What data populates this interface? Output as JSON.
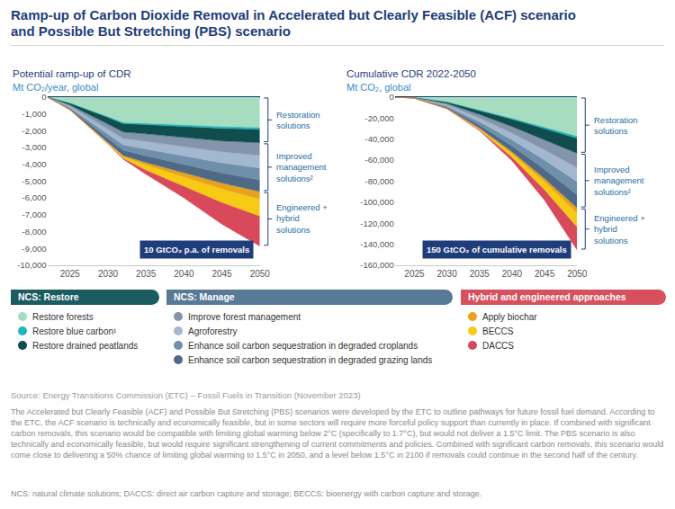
{
  "title": [
    "Ramp-up of Carbon Dioxide Removal in Accelerated but Clearly Feasible (ACF) scenario",
    "and Possible But Stretching (PBS) scenario"
  ],
  "legend_groups": [
    {
      "title": "NCS: Restore",
      "color": "#1a5c60",
      "bracket": "Restoration solutions"
    },
    {
      "title": "NCS: Manage",
      "color": "#587a96",
      "bracket": "Improved management solutions²"
    },
    {
      "title": "Hybrid and engineered approaches",
      "color": "#d6505d",
      "bracket": "Engineered + hybrid solutions"
    }
  ],
  "chart_data": [
    {
      "type": "area",
      "stacked": true,
      "grid": false,
      "title": "Potential ramp-up of CDR",
      "subtitle": "Mt CO₂/year, global",
      "x": [
        2022,
        2025,
        2030,
        2032,
        2035,
        2040,
        2045,
        2050
      ],
      "xlim": [
        2022,
        2050
      ],
      "xticks": [
        2025,
        2030,
        2035,
        2040,
        2045,
        2050
      ],
      "ylim": [
        -10000,
        0
      ],
      "yticks": [
        0,
        {
          "value": -1000,
          "label": "-1,000"
        },
        {
          "value": -2000,
          "label": "-2,000"
        },
        {
          "value": -3000,
          "label": "-3,000"
        },
        {
          "value": -4000,
          "label": "-4,000"
        },
        {
          "value": -5000,
          "label": "-5,000"
        },
        {
          "value": -6000,
          "label": "-6,000"
        },
        {
          "value": -7000,
          "label": "-7,000"
        },
        {
          "value": -8000,
          "label": "-8,000"
        },
        {
          "value": -9000,
          "label": "-9,000"
        },
        {
          "value": -10000,
          "label": "-10,000"
        }
      ],
      "annotations": [
        {
          "text": "10 GtCO₂ p.a. of removals"
        }
      ],
      "series": [
        {
          "name": "Restore forests",
          "group": "NCS: Restore",
          "color": "#a6dcc0",
          "values": [
            0,
            -350,
            -1150,
            -1500,
            -1550,
            -1650,
            -1750,
            -1800
          ]
        },
        {
          "name": "Restore blue carbon¹",
          "group": "NCS: Restore",
          "color": "#22b5b8",
          "values": [
            0,
            -20,
            -60,
            -80,
            -90,
            -100,
            -110,
            -120
          ]
        },
        {
          "name": "Restore drained peatlands",
          "group": "NCS: Restore",
          "color": "#0f4d4f",
          "values": [
            0,
            -100,
            -400,
            -500,
            -550,
            -650,
            -750,
            -800
          ]
        },
        {
          "name": "Improve forest management",
          "group": "NCS: Manage",
          "color": "#8394ab",
          "values": [
            0,
            -80,
            -300,
            -380,
            -450,
            -550,
            -650,
            -750
          ]
        },
        {
          "name": "Agroforestry",
          "group": "NCS: Manage",
          "color": "#a3b8cf",
          "values": [
            0,
            -80,
            -300,
            -380,
            -450,
            -550,
            -650,
            -750
          ]
        },
        {
          "name": "Enhance soil carbon sequestration in degraded croplands",
          "group": "NCS: Manage",
          "color": "#6f8fab",
          "values": [
            0,
            -60,
            -250,
            -320,
            -400,
            -500,
            -600,
            -700
          ]
        },
        {
          "name": "Enhance soil carbon sequestration in degraded grazing lands",
          "group": "NCS: Manage",
          "color": "#4e6a86",
          "values": [
            0,
            -60,
            -250,
            -320,
            -400,
            -500,
            -600,
            -700
          ]
        },
        {
          "name": "Apply biochar",
          "group": "Hybrid and engineered approaches",
          "color": "#e9a21d",
          "values": [
            0,
            -5,
            -30,
            -60,
            -150,
            -250,
            -350,
            -450
          ]
        },
        {
          "name": "BECCS",
          "group": "Hybrid and engineered approaches",
          "color": "#f7cb15",
          "values": [
            0,
            -5,
            -40,
            -100,
            -300,
            -550,
            -800,
            -1000
          ]
        },
        {
          "name": "DACCS",
          "group": "Hybrid and engineered approaches",
          "color": "#d84a5b",
          "values": [
            0,
            -2,
            -20,
            -60,
            -250,
            -700,
            -1300,
            -1800
          ]
        }
      ]
    },
    {
      "type": "area",
      "stacked": true,
      "grid": false,
      "title": "Cumulative CDR 2022-2050",
      "subtitle": "Mt CO₂, global",
      "x": [
        2022,
        2025,
        2030,
        2035,
        2040,
        2045,
        2050
      ],
      "xlim": [
        2022,
        2050
      ],
      "xticks": [
        2025,
        2030,
        2035,
        2040,
        2045,
        2050
      ],
      "ylim": [
        -160000,
        0
      ],
      "yticks": [
        0,
        {
          "value": -20000,
          "label": "-20,000"
        },
        {
          "value": -40000,
          "label": "-40,000"
        },
        {
          "value": -60000,
          "label": "-60,000"
        },
        {
          "value": -80000,
          "label": "-80,000"
        },
        {
          "value": -100000,
          "label": "-100,000"
        },
        {
          "value": -120000,
          "label": "-120,000"
        },
        {
          "value": -140000,
          "label": "-140,000"
        },
        {
          "value": -160000,
          "label": "-160,000"
        }
      ],
      "annotations": [
        {
          "text": "150 GtCO₂ of cumulative removals"
        }
      ],
      "series": [
        {
          "name": "Restore forests",
          "group": "NCS: Restore",
          "color": "#a6dcc0",
          "values": [
            0,
            -500,
            -4500,
            -12000,
            -20000,
            -28500,
            -37000
          ]
        },
        {
          "name": "Restore blue carbon¹",
          "group": "NCS: Restore",
          "color": "#22b5b8",
          "values": [
            0,
            -30,
            -230,
            -600,
            -1100,
            -1600,
            -2200
          ]
        },
        {
          "name": "Restore drained peatlands",
          "group": "NCS: Restore",
          "color": "#0f4d4f",
          "values": [
            0,
            -150,
            -1400,
            -3900,
            -7000,
            -10500,
            -14300
          ]
        },
        {
          "name": "Improve forest management",
          "group": "NCS: Manage",
          "color": "#8394ab",
          "values": [
            0,
            -130,
            -1300,
            -3500,
            -6300,
            -9700,
            -13500
          ]
        },
        {
          "name": "Agroforestry",
          "group": "NCS: Manage",
          "color": "#a3b8cf",
          "values": [
            0,
            -130,
            -1300,
            -3500,
            -6300,
            -9700,
            -13500
          ]
        },
        {
          "name": "Enhance soil carbon sequestration in degraded croplands",
          "group": "NCS: Manage",
          "color": "#6f8fab",
          "values": [
            0,
            -100,
            -1100,
            -3100,
            -5700,
            -8800,
            -12500
          ]
        },
        {
          "name": "Enhance soil carbon sequestration in degraded grazing lands",
          "group": "NCS: Manage",
          "color": "#4e6a86",
          "values": [
            0,
            -100,
            -1100,
            -3100,
            -5700,
            -8800,
            -12500
          ]
        },
        {
          "name": "Apply biochar",
          "group": "Hybrid and engineered approaches",
          "color": "#e9a21d",
          "values": [
            0,
            -5,
            -100,
            -600,
            -1600,
            -3100,
            -5100
          ]
        },
        {
          "name": "BECCS",
          "group": "Hybrid and engineered approaches",
          "color": "#f7cb15",
          "values": [
            0,
            -5,
            -120,
            -1000,
            -3500,
            -7500,
            -13000
          ]
        },
        {
          "name": "DACCS",
          "group": "Hybrid and engineered approaches",
          "color": "#d84a5b",
          "values": [
            0,
            -2,
            -60,
            -700,
            -3500,
            -10000,
            -22000
          ]
        }
      ]
    }
  ],
  "source": "Source: Energy Transitions Commission (ETC) – Fossil Fuels in Transition (November 2023)",
  "notes": "The Accelerated but Clearly Feasible (ACF) and Possible But Stretching (PBS) scenarios were developed by the ETC to outline pathways for future fossil fuel demand. According to the ETC, the ACF scenario is technically and economically feasible, but in some sectors will require more forceful policy support than currently in place. If combined with significant carbon removals, this scenario would be compatible with limiting global warming below 2°C (specifically to 1.7°C), but would not deliver a 1.5°C limit. The PBS scenario is also technically and economically feasible, but would require significant strengthening of current commitments and policies. Combined with significant carbon removals, this scenario would come close to delivering a 50% chance of limiting global warming to 1.5°C in 2050, and a level below 1.5°C in 2100 if removals could continue in the second half of the century.",
  "abbreviations": "NCS: natural climate solutions; DACCS: direct air carbon capture and storage; BECCS: bioenergy with carbon capture and storage."
}
